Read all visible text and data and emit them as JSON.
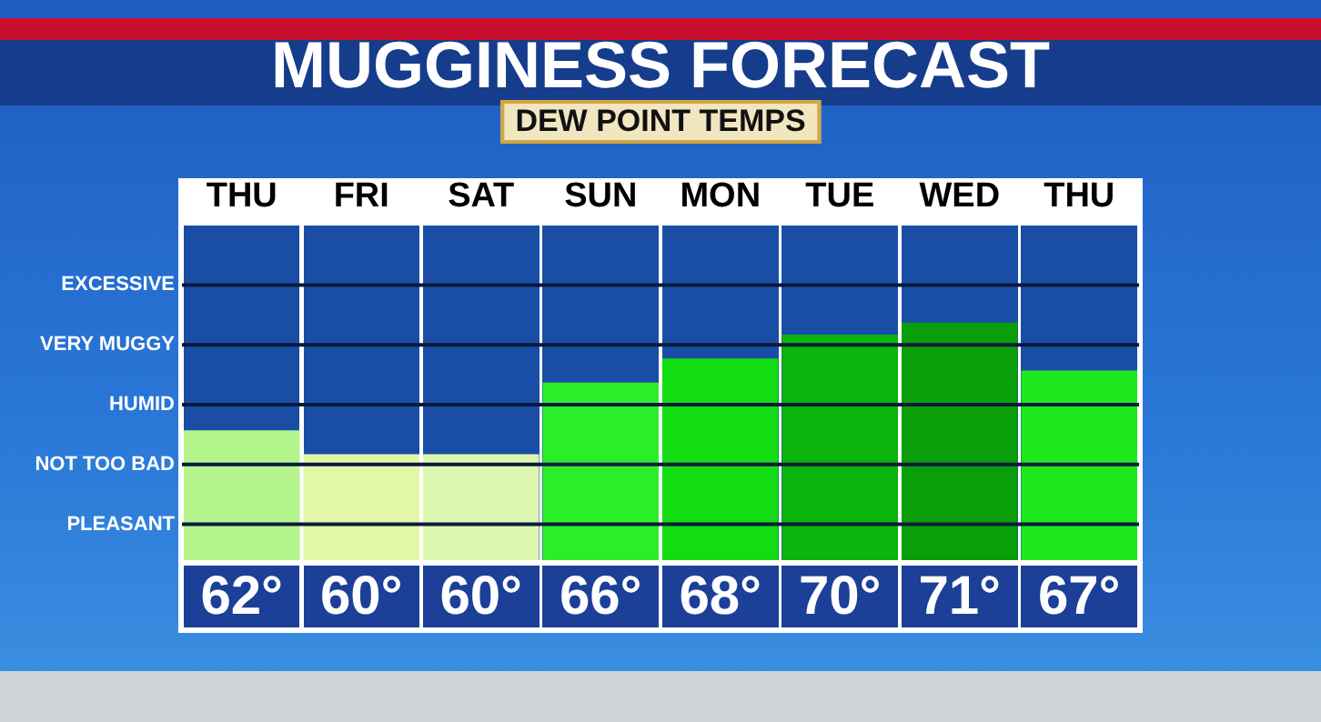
{
  "chart_data": {
    "type": "bar",
    "title": "MUGGINESS FORECAST",
    "subtitle": "DEW POINT TEMPS",
    "categories": [
      "THU",
      "FRI",
      "SAT",
      "SUN",
      "MON",
      "TUE",
      "WED",
      "THU"
    ],
    "values": [
      62,
      60,
      60,
      66,
      68,
      70,
      71,
      67
    ],
    "colors": [
      "#b4f58e",
      "#e2f7a8",
      "#dcf8b0",
      "#2bee2b",
      "#12dc12",
      "#0cb40c",
      "#0a9e0a",
      "#1ee81e"
    ],
    "value_labels": [
      "62°",
      "60°",
      "60°",
      "66°",
      "68°",
      "70°",
      "71°",
      "67°"
    ],
    "ylim": [
      51,
      79
    ],
    "ref_lines": [
      {
        "axis": "y",
        "value": 54,
        "label": "PLEASANT",
        "color": "#0a1a3a"
      },
      {
        "axis": "y",
        "value": 59,
        "label": "NOT TOO BAD",
        "color": "#0a1a3a"
      },
      {
        "axis": "y",
        "value": 64,
        "label": "HUMID",
        "color": "#0a1a3a"
      },
      {
        "axis": "y",
        "value": 69,
        "label": "VERY MUGGY",
        "color": "#0a1a3a"
      },
      {
        "axis": "y",
        "value": 74,
        "label": "EXCESSIVE",
        "color": "#0a1a3a"
      }
    ],
    "tick_labels": "x",
    "legend": false
  }
}
